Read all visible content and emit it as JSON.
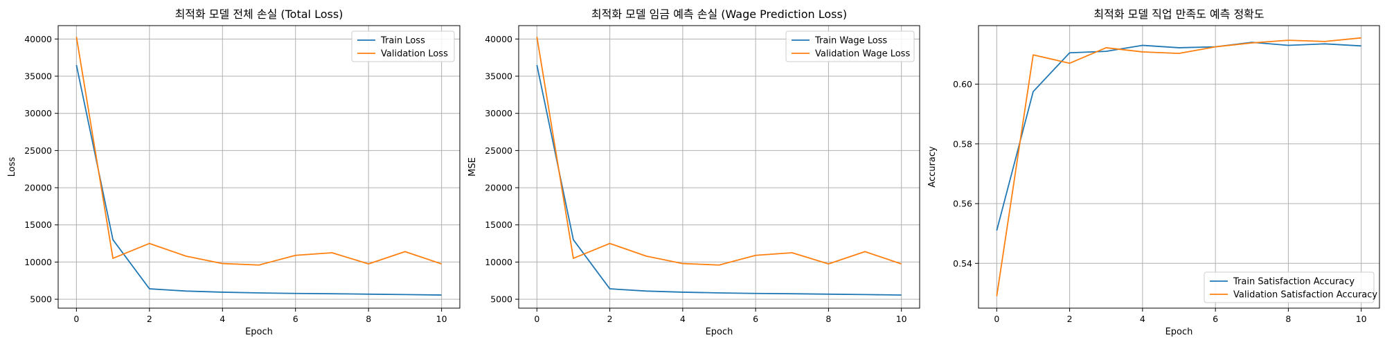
{
  "colors": {
    "train": "#1f77b4",
    "validation": "#ff7f0e",
    "grid": "#b0b0b0",
    "axis": "#000000"
  },
  "chart_data": [
    {
      "type": "line",
      "title": "최적화 모델 전체 손실 (Total Loss)",
      "xlabel": "Epoch",
      "ylabel": "Loss",
      "x": [
        0,
        1,
        2,
        3,
        4,
        5,
        6,
        7,
        8,
        9,
        10
      ],
      "xticks": [
        0,
        2,
        4,
        6,
        8,
        10
      ],
      "yticks": [
        5000,
        10000,
        15000,
        20000,
        25000,
        30000,
        35000,
        40000
      ],
      "ylim": [
        3800,
        41800
      ],
      "xlim": [
        -0.5,
        10.5
      ],
      "grid": true,
      "legend": "top-right",
      "series": [
        {
          "name": "Train Loss",
          "color": "#1f77b4",
          "values": [
            36500,
            13000,
            6400,
            6100,
            5950,
            5850,
            5780,
            5740,
            5680,
            5630,
            5560
          ]
        },
        {
          "name": "Validation Loss",
          "color": "#ff7f0e",
          "values": [
            40300,
            10500,
            12500,
            10800,
            9800,
            9600,
            10900,
            11250,
            9750,
            11400,
            9750
          ]
        }
      ]
    },
    {
      "type": "line",
      "title": "최적화 모델 임금 예측 손실 (Wage Prediction Loss)",
      "xlabel": "Epoch",
      "ylabel": "MSE",
      "x": [
        0,
        1,
        2,
        3,
        4,
        5,
        6,
        7,
        8,
        9,
        10
      ],
      "xticks": [
        0,
        2,
        4,
        6,
        8,
        10
      ],
      "yticks": [
        5000,
        10000,
        15000,
        20000,
        25000,
        30000,
        35000,
        40000
      ],
      "ylim": [
        3800,
        41800
      ],
      "xlim": [
        -0.5,
        10.5
      ],
      "grid": true,
      "legend": "top-right",
      "series": [
        {
          "name": "Train Wage Loss",
          "color": "#1f77b4",
          "values": [
            36500,
            13000,
            6400,
            6100,
            5950,
            5850,
            5780,
            5740,
            5680,
            5630,
            5560
          ]
        },
        {
          "name": "Validation Wage Loss",
          "color": "#ff7f0e",
          "values": [
            40300,
            10500,
            12500,
            10800,
            9800,
            9600,
            10900,
            11250,
            9750,
            11400,
            9750
          ]
        }
      ]
    },
    {
      "type": "line",
      "title": "최적화 모델 직업 만족도 예측 정확도",
      "xlabel": "Epoch",
      "ylabel": "Accuracy",
      "x": [
        0,
        1,
        2,
        3,
        4,
        5,
        6,
        7,
        8,
        9,
        10
      ],
      "xticks": [
        0,
        2,
        4,
        6,
        8,
        10
      ],
      "yticks": [
        "0.54",
        "0.56",
        "0.58",
        "0.60"
      ],
      "ylim": [
        0.525,
        0.6196
      ],
      "xlim": [
        -0.5,
        10.5
      ],
      "grid": true,
      "legend": "bottom-right",
      "series": [
        {
          "name": "Train Satisfaction Accuracy",
          "color": "#1f77b4",
          "values": [
            0.551,
            0.5975,
            0.6105,
            0.611,
            0.613,
            0.6122,
            0.6125,
            0.614,
            0.613,
            0.6135,
            0.6128
          ]
        },
        {
          "name": "Validation Satisfaction Accuracy",
          "color": "#ff7f0e",
          "values": [
            0.529,
            0.6098,
            0.607,
            0.6122,
            0.6108,
            0.6103,
            0.6125,
            0.6138,
            0.6147,
            0.6143,
            0.6155
          ]
        }
      ]
    }
  ]
}
